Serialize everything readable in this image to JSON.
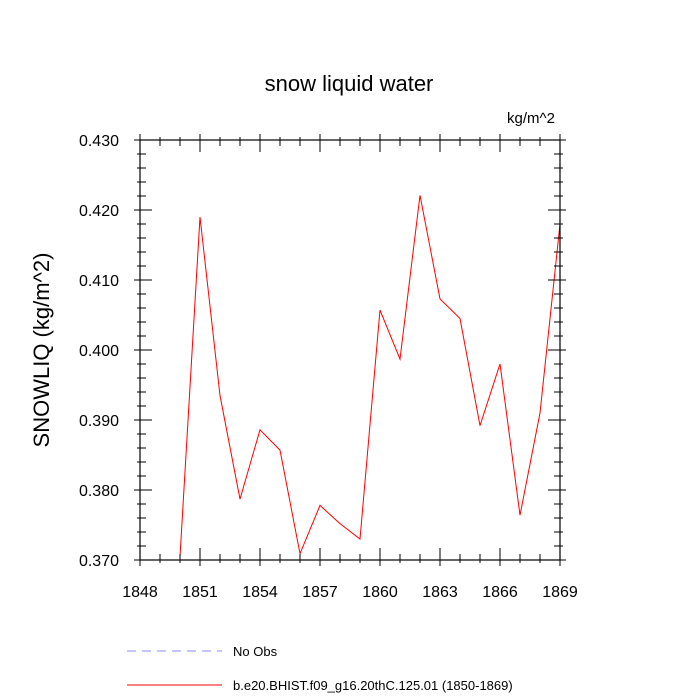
{
  "chart_data": {
    "type": "line",
    "title": "snow liquid water",
    "units": "kg/m^2",
    "xlabel": "",
    "ylabel": "SNOWLIQ  (kg/m^2)",
    "xlim": [
      1848,
      1869
    ],
    "ylim": [
      0.37,
      0.43
    ],
    "x_ticks": [
      1848,
      1851,
      1854,
      1857,
      1860,
      1863,
      1866,
      1869
    ],
    "x_tick_labels": [
      "1848",
      "1851",
      "1854",
      "1857",
      "1860",
      "1863",
      "1866",
      "1869"
    ],
    "y_ticks": [
      0.37,
      0.38,
      0.39,
      0.4,
      0.41,
      0.42,
      0.43
    ],
    "y_tick_labels": [
      "0.370",
      "0.380",
      "0.390",
      "0.400",
      "0.410",
      "0.420",
      "0.430"
    ],
    "series": [
      {
        "name": "b.e20.BHIST.f09_g16.20thC.125.01 (1850-1869)",
        "color": "#ff0000",
        "dash": "solid",
        "x": [
          1850,
          1851,
          1852,
          1853,
          1854,
          1855,
          1856,
          1857,
          1858,
          1859,
          1860,
          1861,
          1862,
          1863,
          1864,
          1865,
          1866,
          1867,
          1868,
          1869
        ],
        "values": [
          0.3705,
          0.419,
          0.3935,
          0.3787,
          0.3886,
          0.3857,
          0.3709,
          0.3778,
          0.3752,
          0.373,
          0.4057,
          0.3987,
          0.4221,
          0.4073,
          0.4045,
          0.3892,
          0.398,
          0.3764,
          0.391,
          0.418
        ]
      }
    ],
    "legend": [
      {
        "label": "No Obs",
        "color": "#8c8cff",
        "dash": "dashed"
      },
      {
        "label": "b.e20.BHIST.f09_g16.20thC.125.01 (1850-1869)",
        "color": "#ff0000",
        "dash": "solid"
      }
    ],
    "legend_position": "bottom-left"
  }
}
